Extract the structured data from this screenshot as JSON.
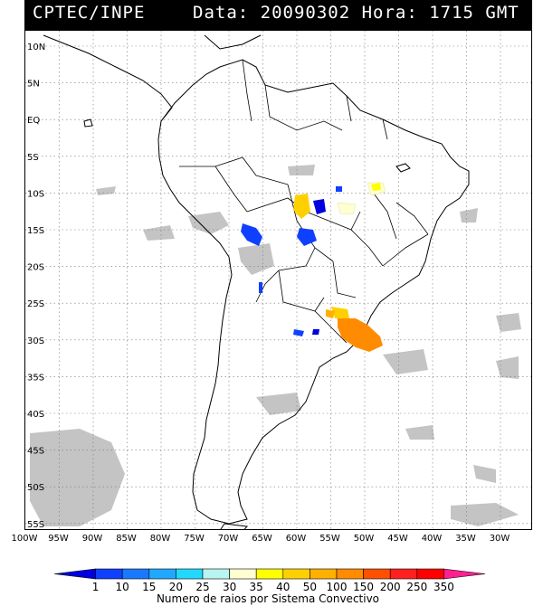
{
  "header": {
    "source": "CPTEC/INPE",
    "datetime": "Data: 20090302 Hora: 1715 GMT"
  },
  "map": {
    "lat_labels": [
      "10N",
      "5N",
      "EQ",
      "5S",
      "10S",
      "15S",
      "20S",
      "25S",
      "30S",
      "35S",
      "40S",
      "45S",
      "50S",
      "55S"
    ],
    "lon_labels": [
      "100W",
      "95W",
      "90W",
      "85W",
      "80W",
      "75W",
      "70W",
      "65W",
      "60W",
      "55W",
      "50W",
      "45W",
      "40W",
      "35W",
      "30W"
    ],
    "grid": "dotted"
  },
  "legend": {
    "title": "Numero de raios por Sistema Convectivo",
    "ticks": [
      "1",
      "10",
      "15",
      "20",
      "25",
      "30",
      "35",
      "40",
      "50",
      "100",
      "150",
      "200",
      "250",
      "350"
    ],
    "colors": [
      "#0000e0",
      "#1040ff",
      "#1a78ff",
      "#20a8ff",
      "#22d8ff",
      "#b8f5f0",
      "#ffffd0",
      "#ffff00",
      "#ffd000",
      "#ffb000",
      "#ff8c00",
      "#ff5000",
      "#ff2020",
      "#ff0000",
      "#ff2090"
    ]
  }
}
